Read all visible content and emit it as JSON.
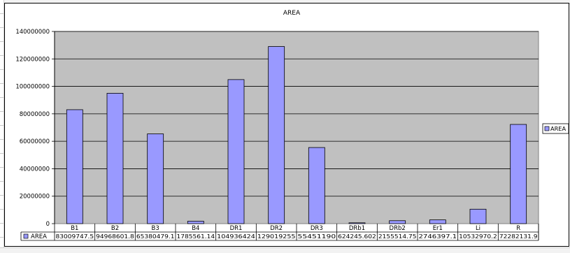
{
  "chart_data": {
    "type": "bar",
    "title": "AREA",
    "categories": [
      "B1",
      "B2",
      "B3",
      "B4",
      "DR1",
      "DR2",
      "DR3",
      "DRb1",
      "DRb2",
      "Er1",
      "Li",
      "R"
    ],
    "series": [
      {
        "name": "AREA",
        "values": [
          83009747.5,
          94968601.8,
          65380479.1,
          1785561.14,
          104936424,
          129019255,
          55451190,
          624245.602,
          2155514.75,
          2746397.1,
          10532970.2,
          72282131.9
        ],
        "value_labels": [
          "83009747.5",
          "94968601.8",
          "65380479.1",
          "1785561.14",
          "104936424",
          "129019255",
          "55451190",
          "624245.602",
          "2155514.75",
          "2746397.1",
          "10532970.2",
          "72282131.9"
        ]
      }
    ],
    "ylim": [
      0,
      140000000
    ],
    "yticks": [
      "0",
      "20000000",
      "40000000",
      "60000000",
      "80000000",
      "100000000",
      "120000000",
      "140000000"
    ],
    "grid": true,
    "legend": "right",
    "data_table": true,
    "colors": {
      "bar_fill": "#9999ff",
      "bar_stroke": "#000000",
      "plot_background": "#c0c0c0",
      "gridline": "#000000"
    }
  }
}
